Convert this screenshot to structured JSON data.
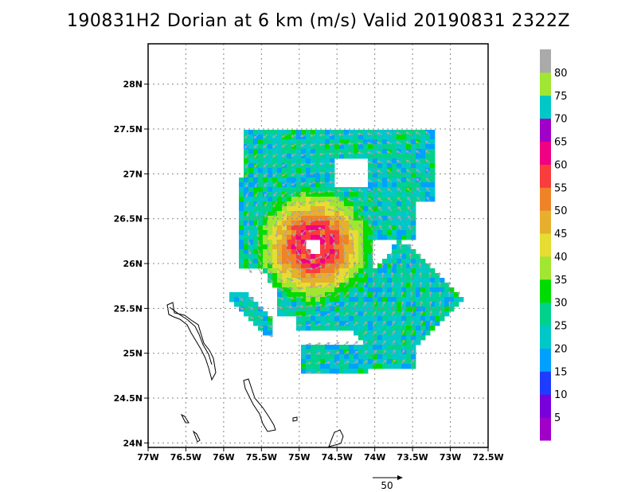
{
  "chart_data": {
    "type": "heatmap",
    "title": "190831H2 Dorian at 6 km (m/s) Valid 20190831 2322Z",
    "x_ticks": [
      "77W",
      "76.5W",
      "76W",
      "75.5W",
      "75W",
      "74.5W",
      "74W",
      "73.5W",
      "73W",
      "72.5W"
    ],
    "x_values": [
      -77,
      -76.5,
      -76,
      -75.5,
      -75,
      -74.5,
      -74,
      -73.5,
      -73,
      -72.5
    ],
    "y_ticks": [
      "24N",
      "24.5N",
      "25N",
      "25.5N",
      "26N",
      "26.5N",
      "27N",
      "27.5N",
      "28N"
    ],
    "y_values": [
      24,
      24.5,
      25,
      25.5,
      26,
      26.5,
      27,
      27.5,
      28
    ],
    "xlim": [
      -77,
      -72.5
    ],
    "ylim": [
      23.95,
      28.45
    ],
    "grid": true,
    "colorbar": {
      "labels": [
        "5",
        "10",
        "15",
        "20",
        "25",
        "30",
        "35",
        "40",
        "45",
        "50",
        "55",
        "60",
        "65",
        "70",
        "75",
        "80"
      ],
      "colors": [
        "#a000c8",
        "#7800dc",
        "#1e3cff",
        "#00a0ff",
        "#00c8c8",
        "#00d28c",
        "#00dc00",
        "#a0e632",
        "#e6dc32",
        "#e6af2d",
        "#f08228",
        "#fa3c3c",
        "#f00082",
        "#a000c8",
        "#00c8c8",
        "#a0e632",
        "#aaaaaa"
      ]
    },
    "center": {
      "lon": -74.8,
      "lat": 26.2
    },
    "max_wind": 65,
    "reference_vector": "50"
  },
  "colors": {
    "land": "#000000",
    "grid": "#888888",
    "arrow": "#a8a8a8"
  }
}
